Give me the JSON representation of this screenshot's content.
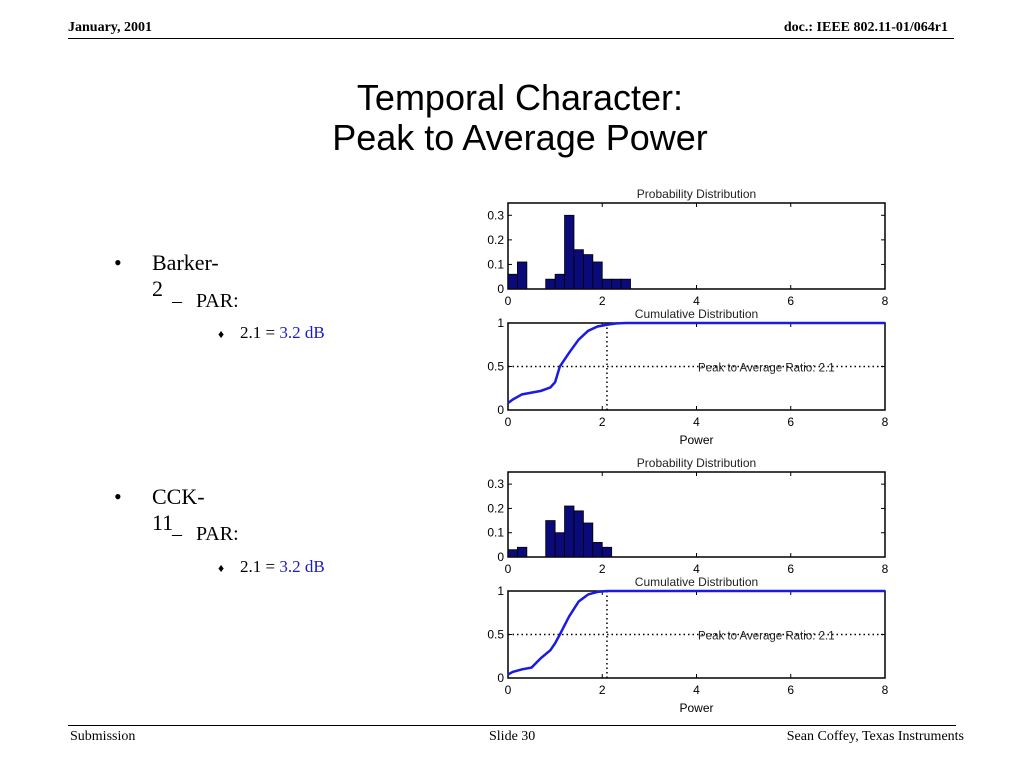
{
  "header": {
    "left": "January, 2001",
    "right": "doc.: IEEE 802.11-01/064r1"
  },
  "title": {
    "line1": "Temporal Character:",
    "line2": "Peak to Average Power"
  },
  "bullets": [
    {
      "label": "Barker-2",
      "sub": "PAR:",
      "subsub_prefix": "2.1 = ",
      "subsub_value": "3.2 dB"
    },
    {
      "label": "CCK-11",
      "sub": "PAR:",
      "subsub_prefix": "2.1 = ",
      "subsub_value": "3.2 dB"
    }
  ],
  "footer": {
    "left": "Submission",
    "center": "Slide 30",
    "right": "Sean Coffey, Texas Instruments"
  },
  "chart_data": [
    {
      "type": "bar",
      "title": "Probability Distribution",
      "xlim": [
        0,
        8
      ],
      "ylim": [
        0,
        0.35
      ],
      "xticks": [
        "0",
        "2",
        "4",
        "6",
        "8"
      ],
      "yticks": [
        "0",
        "0.1",
        "0.2",
        "0.3"
      ],
      "bin_centers": [
        0.1,
        0.3,
        0.5,
        0.7,
        0.9,
        1.1,
        1.3,
        1.5,
        1.7,
        1.9,
        2.1,
        2.3,
        2.5,
        2.7
      ],
      "values": [
        0.06,
        0.11,
        0.0,
        0.0,
        0.04,
        0.06,
        0.3,
        0.16,
        0.14,
        0.11,
        0.04,
        0.04,
        0.04,
        0.0
      ],
      "bar_color": "#0a0a78"
    },
    {
      "type": "line",
      "title": "Cumulative Distribution",
      "xlabel": "Power",
      "xlim": [
        0,
        8
      ],
      "ylim": [
        0,
        1
      ],
      "xticks": [
        "0",
        "2",
        "4",
        "6",
        "8"
      ],
      "yticks": [
        "0",
        "0.5",
        "1"
      ],
      "x": [
        0,
        0.1,
        0.3,
        0.5,
        0.7,
        0.9,
        1.0,
        1.1,
        1.3,
        1.5,
        1.7,
        1.9,
        2.1,
        2.3,
        2.5,
        2.7,
        8
      ],
      "y": [
        0.08,
        0.12,
        0.18,
        0.2,
        0.22,
        0.26,
        0.32,
        0.5,
        0.66,
        0.81,
        0.91,
        0.96,
        0.98,
        0.995,
        1.0,
        1.0,
        1.0
      ],
      "line_color": "#1a1ae0",
      "annotation": "Peak to Average Ratio: 2.1",
      "annotation_marker_x": 2.1,
      "reference_level": 0.5
    },
    {
      "type": "bar",
      "title": "Probability Distribution",
      "xlim": [
        0,
        8
      ],
      "ylim": [
        0,
        0.35
      ],
      "xticks": [
        "0",
        "2",
        "4",
        "6",
        "8"
      ],
      "yticks": [
        "0",
        "0.1",
        "0.2",
        "0.3"
      ],
      "bin_centers": [
        0.1,
        0.3,
        0.5,
        0.7,
        0.9,
        1.1,
        1.3,
        1.5,
        1.7,
        1.9,
        2.1,
        2.3,
        2.5,
        2.7
      ],
      "values": [
        0.03,
        0.04,
        0.0,
        0.0,
        0.15,
        0.1,
        0.21,
        0.19,
        0.14,
        0.06,
        0.04,
        0.0,
        0.0,
        0.0
      ],
      "bar_color": "#0a0a78"
    },
    {
      "type": "line",
      "title": "Cumulative Distribution",
      "xlabel": "Power",
      "xlim": [
        0,
        8
      ],
      "ylim": [
        0,
        1
      ],
      "xticks": [
        "0",
        "2",
        "4",
        "6",
        "8"
      ],
      "yticks": [
        "0",
        "0.5",
        "1"
      ],
      "x": [
        0,
        0.1,
        0.3,
        0.5,
        0.7,
        0.9,
        1.0,
        1.1,
        1.3,
        1.5,
        1.7,
        1.9,
        2.1,
        2.3,
        8
      ],
      "y": [
        0.04,
        0.07,
        0.1,
        0.12,
        0.23,
        0.32,
        0.4,
        0.5,
        0.71,
        0.88,
        0.96,
        0.99,
        1.0,
        1.0,
        1.0
      ],
      "line_color": "#1a1ae0",
      "annotation": "Peak to Average Ratio: 2.1",
      "annotation_marker_x": 2.1,
      "reference_level": 0.5
    }
  ]
}
